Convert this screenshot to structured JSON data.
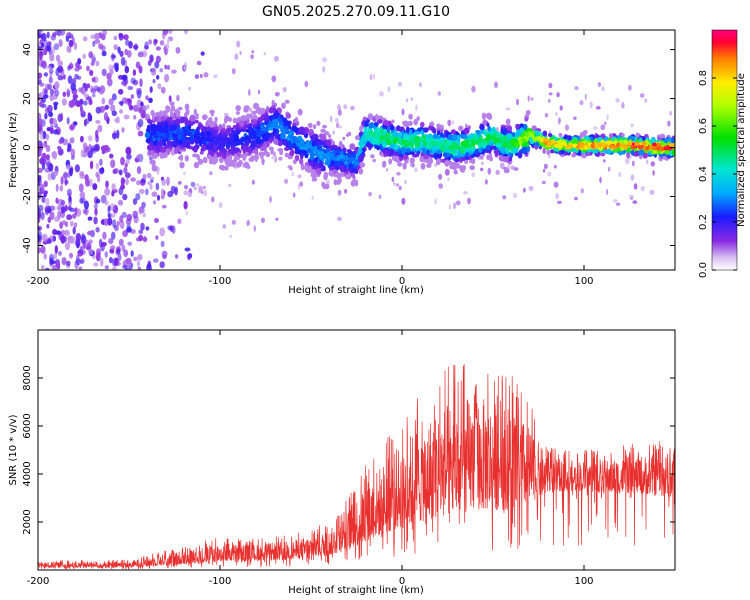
{
  "figure": {
    "title": "GN05.2025.270.09.11.G10"
  },
  "chart_data": [
    {
      "type": "heatmap",
      "title": "GN05.2025.270.09.11.G10",
      "xlabel": "Height of straight line (km)",
      "ylabel": "Frequency (Hz)",
      "xlim": [
        -200,
        150
      ],
      "ylim": [
        -50,
        48
      ],
      "x_ticks": [
        "-200",
        "-100",
        "0",
        "100"
      ],
      "y_ticks": [
        "-40",
        "-20",
        "0",
        "20",
        "40"
      ],
      "x_tick_values": [
        -200,
        -100,
        0,
        100
      ],
      "y_tick_values": [
        -40,
        -20,
        0,
        20,
        40
      ],
      "colorbar": {
        "label": "Normalized spectral amplitude",
        "range": [
          0,
          1
        ],
        "ticks": [
          "0.0",
          "0.2",
          "0.4",
          "0.6",
          "0.8"
        ],
        "tick_values": [
          0.0,
          0.2,
          0.4,
          0.6,
          0.8
        ]
      },
      "ridge": {
        "description_x": [
          -135,
          -120,
          -100,
          -80,
          -70,
          -60,
          -50,
          -40,
          -30,
          -25,
          -20,
          -10,
          0,
          10,
          20,
          30,
          40,
          50,
          55,
          60,
          70,
          80,
          90,
          100,
          110,
          120,
          130,
          140,
          150
        ],
        "frequency_hz": [
          5,
          6,
          2,
          5,
          10,
          4,
          -1,
          -4,
          -5,
          -6,
          6,
          4,
          2,
          3,
          1,
          0,
          2,
          5,
          2,
          1,
          5,
          2,
          1,
          1,
          1,
          1,
          1,
          0,
          0
        ],
        "amplitude": [
          0.25,
          0.25,
          0.2,
          0.25,
          0.3,
          0.3,
          0.3,
          0.3,
          0.3,
          0.3,
          0.45,
          0.5,
          0.5,
          0.5,
          0.45,
          0.5,
          0.5,
          0.5,
          0.5,
          0.55,
          0.7,
          0.8,
          0.8,
          0.85,
          0.85,
          0.9,
          0.9,
          0.9,
          0.9
        ]
      },
      "noise_region_x": [
        -200,
        -150
      ]
    },
    {
      "type": "line",
      "xlabel": "Height of straight line (km)",
      "ylabel": "SNR (10 * v/v)",
      "xlim": [
        -200,
        150
      ],
      "ylim": [
        0,
        10000
      ],
      "x_ticks": [
        "-200",
        "-100",
        "0",
        "100"
      ],
      "y_ticks": [
        "2000",
        "4000",
        "6000",
        "8000"
      ],
      "x_tick_values": [
        -200,
        -100,
        0,
        100
      ],
      "y_tick_values": [
        2000,
        4000,
        6000,
        8000
      ],
      "color": "#e8302e",
      "envelope": {
        "x": [
          -200,
          -150,
          -140,
          -120,
          -100,
          -80,
          -60,
          -40,
          -30,
          -20,
          -10,
          0,
          10,
          20,
          30,
          40,
          50,
          60,
          70,
          80,
          90,
          100,
          110,
          120,
          130,
          140,
          150
        ],
        "low": [
          100,
          100,
          150,
          250,
          350,
          400,
          450,
          600,
          800,
          1200,
          1500,
          1800,
          2000,
          2200,
          2300,
          2500,
          2500,
          2500,
          2800,
          3200,
          3300,
          3300,
          3200,
          3200,
          3200,
          3100,
          3000
        ],
        "mid": [
          200,
          250,
          400,
          600,
          800,
          800,
          900,
          1200,
          1800,
          2600,
          3200,
          3500,
          3900,
          4300,
          4600,
          4800,
          4900,
          4800,
          4700,
          4400,
          4300,
          4200,
          4100,
          4100,
          4100,
          4100,
          4000
        ],
        "high": [
          400,
          450,
          700,
          1000,
          1400,
          1300,
          1500,
          2000,
          3000,
          4500,
          5500,
          6500,
          7500,
          8200,
          8800,
          8800,
          8600,
          8300,
          7000,
          5200,
          5000,
          5000,
          5100,
          5200,
          5300,
          5400,
          5600
        ]
      }
    }
  ]
}
